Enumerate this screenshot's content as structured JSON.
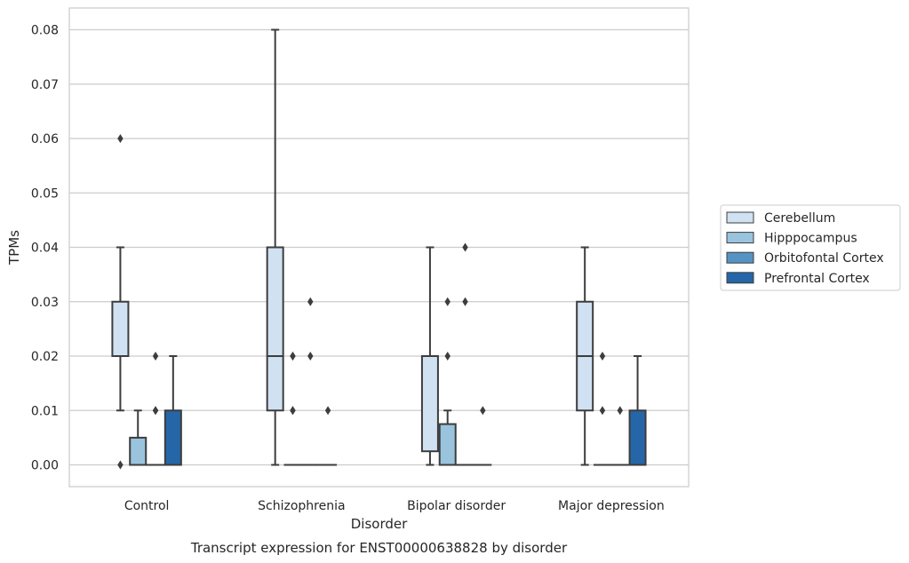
{
  "chart_data": {
    "type": "boxplot",
    "title": "",
    "caption": "Transcript expression for ENST00000638828 by disorder",
    "xlabel": "Disorder",
    "ylabel": "TPMs",
    "ylim": [
      -0.004,
      0.084
    ],
    "yticks": [
      "0.00",
      "0.01",
      "0.02",
      "0.03",
      "0.04",
      "0.05",
      "0.06",
      "0.07",
      "0.08"
    ],
    "grid": "horizontal",
    "legend_position": "outside-right",
    "categories": [
      "Control",
      "Schizophrenia",
      "Bipolar disorder",
      "Major depression"
    ],
    "series": [
      {
        "name": "Cerebellum",
        "color": "#d0e1f2",
        "boxes": [
          {
            "whislo": 0.01,
            "q1": 0.02,
            "med": 0.02,
            "q3": 0.03,
            "whishi": 0.04,
            "fliers": [
              0.0,
              0.06
            ]
          },
          {
            "whislo": 0.0,
            "q1": 0.01,
            "med": 0.02,
            "q3": 0.04,
            "whishi": 0.08,
            "fliers": []
          },
          {
            "whislo": 0.0,
            "q1": 0.0025,
            "med": 0.02,
            "q3": 0.02,
            "whishi": 0.04,
            "fliers": []
          },
          {
            "whislo": 0.0,
            "q1": 0.01,
            "med": 0.02,
            "q3": 0.03,
            "whishi": 0.04,
            "fliers": []
          }
        ]
      },
      {
        "name": "Hipppocampus",
        "color": "#9ac3de",
        "boxes": [
          {
            "whislo": 0.0,
            "q1": 0.0,
            "med": 0.0,
            "q3": 0.005,
            "whishi": 0.01,
            "fliers": []
          },
          {
            "whislo": 0.0,
            "q1": 0.0,
            "med": 0.0,
            "q3": 0.0,
            "whishi": 0.0,
            "fliers": [
              0.01,
              0.01,
              0.02,
              0.02
            ]
          },
          {
            "whislo": 0.0,
            "q1": 0.0,
            "med": 0.0,
            "q3": 0.0075,
            "whishi": 0.01,
            "fliers": [
              0.02,
              0.03
            ]
          },
          {
            "whislo": 0.0,
            "q1": 0.0,
            "med": 0.0,
            "q3": 0.0,
            "whishi": 0.0,
            "fliers": [
              0.01,
              0.02
            ]
          }
        ]
      },
      {
        "name": "Orbitofontal Cortex",
        "color": "#5593c4",
        "boxes": [
          {
            "whislo": 0.0,
            "q1": 0.0,
            "med": 0.0,
            "q3": 0.0,
            "whishi": 0.0,
            "fliers": [
              0.01,
              0.01,
              0.02
            ]
          },
          {
            "whislo": 0.0,
            "q1": 0.0,
            "med": 0.0,
            "q3": 0.0,
            "whishi": 0.0,
            "fliers": [
              0.02,
              0.03
            ]
          },
          {
            "whislo": 0.0,
            "q1": 0.0,
            "med": 0.0,
            "q3": 0.0,
            "whishi": 0.0,
            "fliers": [
              0.03,
              0.04
            ]
          },
          {
            "whislo": 0.0,
            "q1": 0.0,
            "med": 0.0,
            "q3": 0.0,
            "whishi": 0.0,
            "fliers": [
              0.01
            ]
          }
        ]
      },
      {
        "name": "Prefrontal Cortex",
        "color": "#2566a8",
        "boxes": [
          {
            "whislo": 0.0,
            "q1": 0.0,
            "med": 0.0,
            "q3": 0.01,
            "whishi": 0.02,
            "fliers": []
          },
          {
            "whislo": 0.0,
            "q1": 0.0,
            "med": 0.0,
            "q3": 0.0,
            "whishi": 0.0,
            "fliers": [
              0.01
            ]
          },
          {
            "whislo": 0.0,
            "q1": 0.0,
            "med": 0.0,
            "q3": 0.0,
            "whishi": 0.0,
            "fliers": [
              0.01
            ]
          },
          {
            "whislo": 0.0,
            "q1": 0.0,
            "med": 0.0,
            "q3": 0.01,
            "whishi": 0.02,
            "fliers": []
          }
        ]
      }
    ]
  }
}
